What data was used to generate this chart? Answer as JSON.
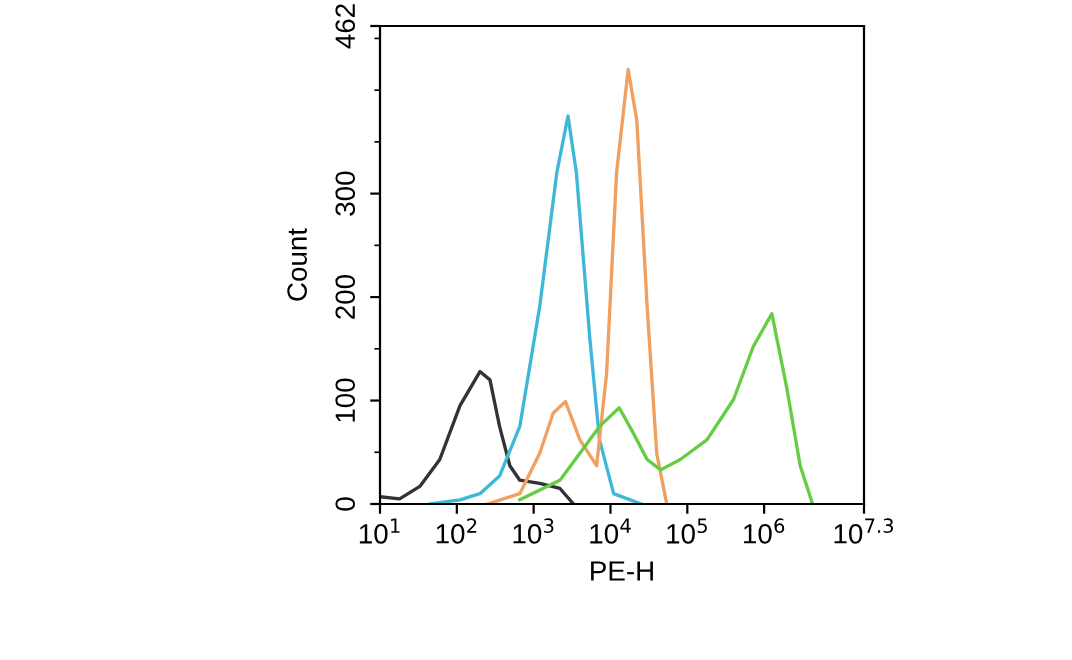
{
  "chart_data": {
    "type": "line",
    "xlabel": "PE-H",
    "ylabel": "Count",
    "log": "x",
    "grid": false,
    "marker": "none",
    "line_style": "solid",
    "xlim": [
      10,
      19952623
    ],
    "ylim": [
      0,
      462
    ],
    "xticks": [
      {
        "value": 10,
        "label": "10$^{1}$"
      },
      {
        "value": 100,
        "label": "10$^{2}$"
      },
      {
        "value": 1000,
        "label": "10$^{3}$"
      },
      {
        "value": 10000,
        "label": "10$^{4}$"
      },
      {
        "value": 100000,
        "label": "10$^{5}$"
      },
      {
        "value": 1000000,
        "label": "10$^{6}$"
      },
      {
        "value": 19952623,
        "label": "10$^{7.3}$"
      }
    ],
    "yticks": [
      0,
      100,
      200,
      300,
      462
    ],
    "series": [
      {
        "color": "#333333",
        "x": [
          10,
          18,
          33,
          60,
          110,
          200,
          270,
          360,
          490,
          660,
          1200,
          2200,
          3300
        ],
        "values": [
          7,
          5,
          17,
          43,
          95,
          128,
          120,
          75,
          37,
          23,
          20,
          15,
          0
        ]
      },
      {
        "color": "#3fb8d8",
        "x": [
          45,
          110,
          200,
          360,
          660,
          1200,
          2000,
          2800,
          3600,
          5400,
          7200,
          11000,
          25000
        ],
        "values": [
          0,
          4,
          10,
          27,
          75,
          191,
          320,
          375,
          320,
          159,
          62,
          10,
          0
        ]
      },
      {
        "color": "#f0a060",
        "x": [
          250,
          660,
          1200,
          1800,
          2600,
          4000,
          6600,
          8900,
          12000,
          17000,
          22000,
          30000,
          40000,
          54000
        ],
        "values": [
          0,
          10,
          49,
          88,
          99,
          62,
          37,
          126,
          320,
          420,
          371,
          191,
          49,
          0
        ]
      },
      {
        "color": "#66cc44",
        "x": [
          660,
          2200,
          4000,
          7200,
          13000,
          20000,
          30000,
          45000,
          81000,
          180000,
          400000,
          720000,
          1260000,
          1950000,
          2950000,
          4270000
        ],
        "values": [
          4,
          23,
          49,
          75,
          93,
          68,
          43,
          33,
          43,
          62,
          101,
          152,
          184,
          114,
          37,
          0
        ]
      }
    ]
  }
}
